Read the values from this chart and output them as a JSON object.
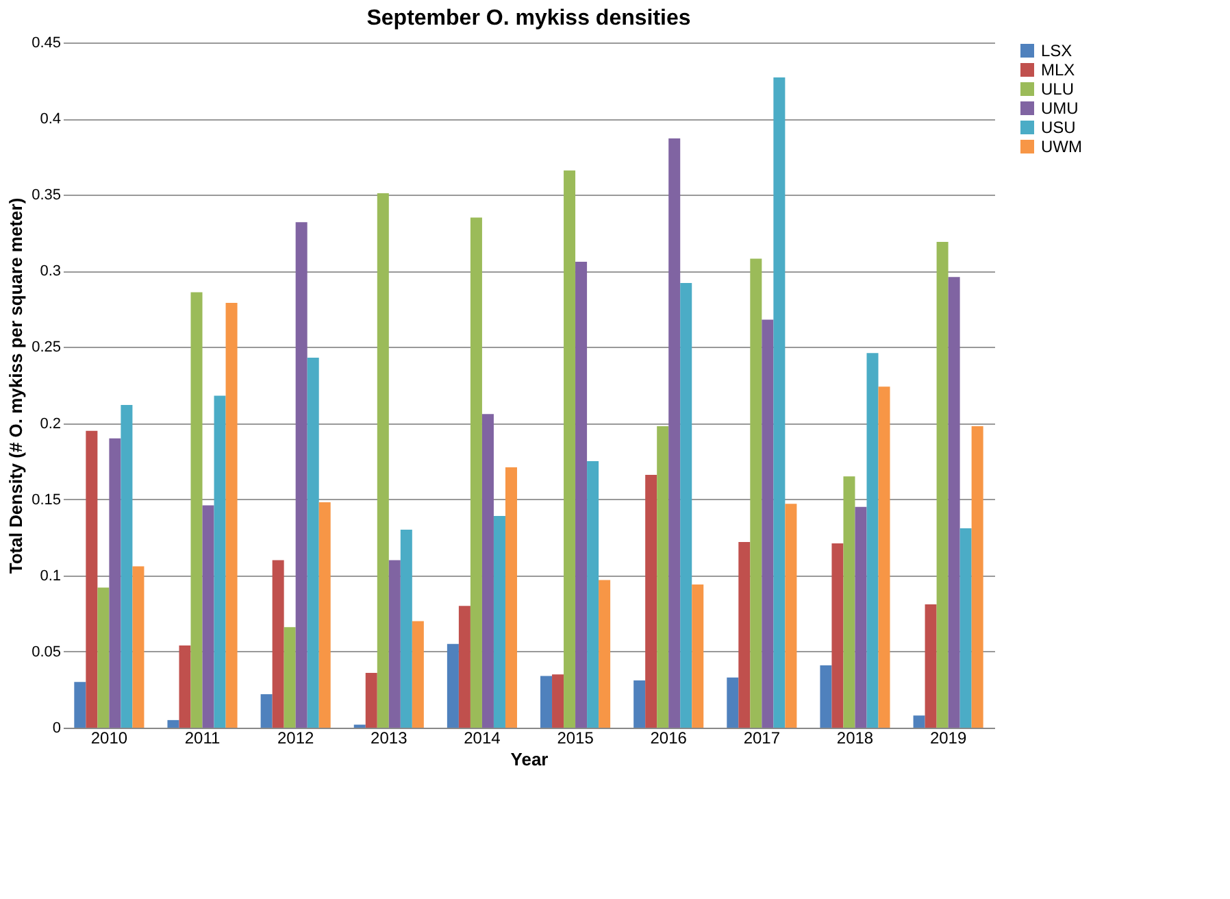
{
  "chart_data": {
    "type": "bar",
    "title": "September O. mykiss densities",
    "xlabel": "Year",
    "ylabel": "Total Density (# O. mykiss per square meter)",
    "categories": [
      "2010",
      "2011",
      "2012",
      "2013",
      "2014",
      "2015",
      "2016",
      "2017",
      "2018",
      "2019"
    ],
    "series": [
      {
        "name": "LSX",
        "color": "#4f81bd",
        "values": [
          0.03,
          0.005,
          0.022,
          0.002,
          0.055,
          0.034,
          0.031,
          0.033,
          0.041,
          0.008
        ]
      },
      {
        "name": "MLX",
        "color": "#c0504d",
        "values": [
          0.195,
          0.054,
          0.11,
          0.036,
          0.08,
          0.035,
          0.166,
          0.122,
          0.121,
          0.081
        ]
      },
      {
        "name": "ULU",
        "color": "#9bbb59",
        "values": [
          0.092,
          0.286,
          0.066,
          0.351,
          0.335,
          0.366,
          0.198,
          0.308,
          0.165,
          0.319
        ]
      },
      {
        "name": "UMU",
        "color": "#8064a2",
        "values": [
          0.19,
          0.146,
          0.332,
          0.11,
          0.206,
          0.306,
          0.387,
          0.268,
          0.145,
          0.296
        ]
      },
      {
        "name": "USU",
        "color": "#4bacc6",
        "values": [
          0.212,
          0.218,
          0.243,
          0.13,
          0.139,
          0.175,
          0.292,
          0.427,
          0.246,
          0.131
        ]
      },
      {
        "name": "UWM",
        "color": "#f79646",
        "values": [
          0.106,
          0.279,
          0.148,
          0.07,
          0.171,
          0.097,
          0.094,
          0.147,
          0.224,
          0.198
        ]
      }
    ],
    "ylim": [
      0,
      0.45
    ],
    "yticks": [
      0,
      0.05,
      0.1,
      0.15,
      0.2,
      0.25,
      0.3,
      0.35,
      0.4,
      0.45
    ],
    "grid": "y",
    "legend": "right"
  }
}
